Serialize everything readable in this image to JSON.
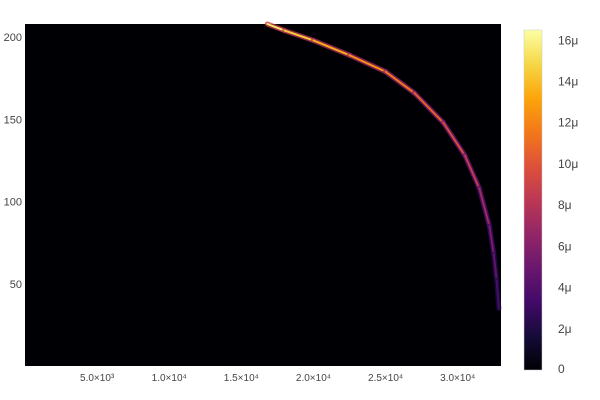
{
  "colors": {
    "background": "#ffffff",
    "plot_background": "#000004",
    "tick_text": "#444444"
  },
  "chart_data": {
    "type": "heatmap",
    "colorscale": "inferno",
    "x_ticks": [
      "5.0×10³",
      "1.0×10⁴",
      "1.5×10⁴",
      "2.0×10⁴",
      "2.5×10⁴",
      "3.0×10⁴"
    ],
    "x_tick_values": [
      5000,
      10000,
      15000,
      20000,
      25000,
      30000
    ],
    "xlim": [
      0,
      33000
    ],
    "y_ticks": [
      "50",
      "100",
      "150",
      "200"
    ],
    "y_tick_values": [
      50,
      100,
      150,
      200
    ],
    "ylim": [
      0,
      208
    ],
    "colorbar": {
      "ticks": [
        "0",
        "2μ",
        "4μ",
        "6μ",
        "8μ",
        "10μ",
        "12μ",
        "14μ",
        "16μ"
      ],
      "tick_values": [
        0,
        2,
        4,
        6,
        8,
        10,
        12,
        14,
        16
      ],
      "range": [
        0,
        16.5
      ],
      "unit": "μ"
    },
    "curve": [
      {
        "x": 16800,
        "y": 208,
        "z": 16
      },
      {
        "x": 18000,
        "y": 204,
        "z": 15
      },
      {
        "x": 20000,
        "y": 198,
        "z": 14
      },
      {
        "x": 22500,
        "y": 189,
        "z": 13
      },
      {
        "x": 25000,
        "y": 179,
        "z": 12
      },
      {
        "x": 27000,
        "y": 166,
        "z": 11
      },
      {
        "x": 29000,
        "y": 148,
        "z": 10
      },
      {
        "x": 30500,
        "y": 128,
        "z": 9
      },
      {
        "x": 31500,
        "y": 108,
        "z": 8
      },
      {
        "x": 32200,
        "y": 85,
        "z": 6
      },
      {
        "x": 32500,
        "y": 68,
        "z": 5
      },
      {
        "x": 32700,
        "y": 52,
        "z": 4
      },
      {
        "x": 32850,
        "y": 35,
        "z": 3
      }
    ]
  }
}
